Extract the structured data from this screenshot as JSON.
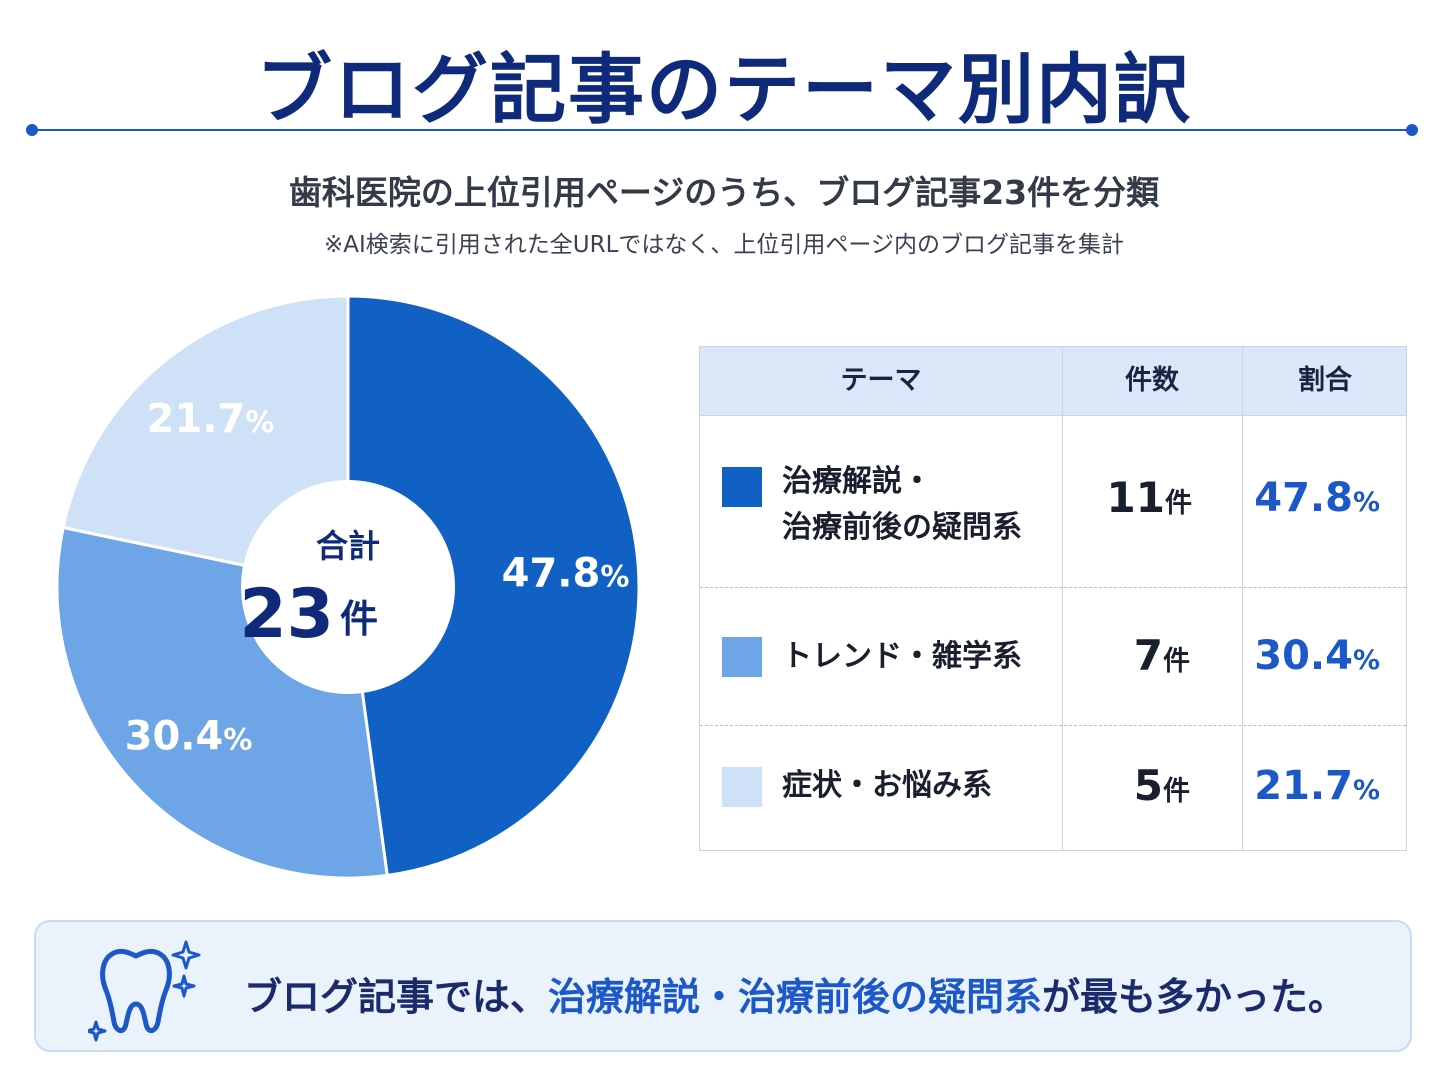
{
  "title": "ブログ記事のテーマ別内訳",
  "subtitle": "歯科医院の上位引用ページのうち、ブログ記事23件を分類",
  "note": "※AI検索に引用された全URLではなく、上位引用ページ内のブログ記事を集計",
  "chart_data": {
    "type": "pie",
    "style": "donut",
    "categories": [
      "治療解説・治療前後の疑問系",
      "トレンド・雑学系",
      "症状・お悩み系"
    ],
    "values": [
      47.8,
      30.4,
      21.7
    ],
    "counts": [
      11,
      7,
      5
    ],
    "value_labels": [
      "47.8",
      "30.4",
      "21.7"
    ],
    "pct_symbol": "%",
    "colors": [
      "#1160c4",
      "#6ea5e6",
      "#cfe1f7"
    ],
    "center_label": "合計",
    "center_value": "23",
    "center_unit": "件"
  },
  "table": {
    "headers": [
      "テーマ",
      "件数",
      "割合"
    ],
    "rows": [
      {
        "theme_line1": "治療解説・",
        "theme_line2": "治療前後の疑問系",
        "count": "11",
        "count_unit": "件",
        "ratio": "47.8",
        "ratio_unit": "%",
        "color": "#1160c4"
      },
      {
        "theme_line1": "トレンド・雑学系",
        "theme_line2": "",
        "count": "7",
        "count_unit": "件",
        "ratio": "30.4",
        "ratio_unit": "%",
        "color": "#6ea5e6"
      },
      {
        "theme_line1": "症状・お悩み系",
        "theme_line2": "",
        "count": "5",
        "count_unit": "件",
        "ratio": "21.7",
        "ratio_unit": "%",
        "color": "#cfe1f7"
      }
    ]
  },
  "callout": {
    "pre": "ブログ記事では、",
    "highlight": "治療解説・治療前後の疑問系",
    "post": "が最も多かった。",
    "icon": "tooth-icon"
  }
}
